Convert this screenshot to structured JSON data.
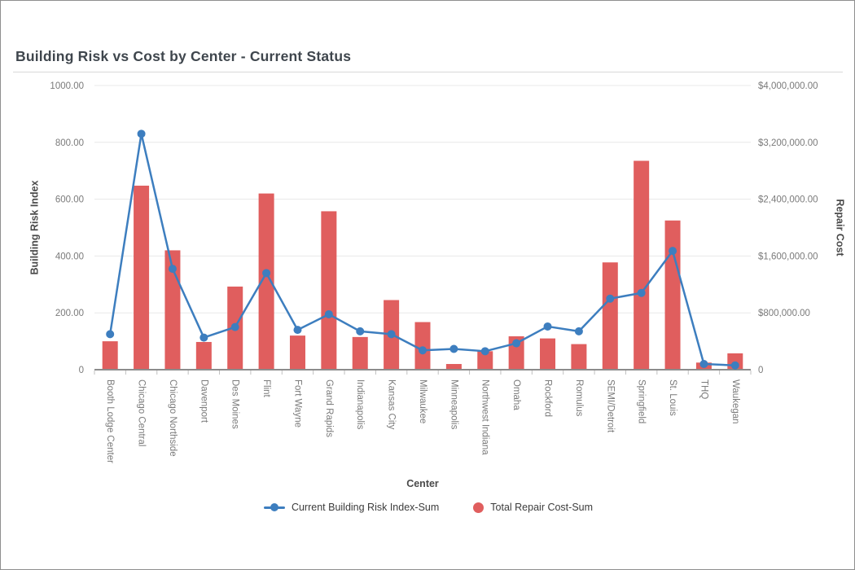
{
  "title": "Building Risk vs Cost by Center - Current Status",
  "colors": {
    "line_series": "#3d7ebf",
    "bar_series": "#e05e5e",
    "grid": "#e8e8e8",
    "axis_line": "#8c8c8c",
    "tick_mark": "#c0c0c0",
    "tick_label": "#7a7a7a",
    "axis_title": "#4a4a4a"
  },
  "chart_data": {
    "type": "combo bar+line",
    "title": "Building Risk vs Cost by Center - Current Status",
    "xlabel": "Center",
    "ylabel_left": "Building Risk Index",
    "ylabel_right": "Repair Cost",
    "ylim_left": [
      0,
      1000
    ],
    "ylim_right": [
      0,
      4000000
    ],
    "grid": true,
    "legend_position": "bottom",
    "y_left_ticks": [
      {
        "value": 1000,
        "label": "1000.00"
      },
      {
        "value": 800,
        "label": "800.00"
      },
      {
        "value": 600,
        "label": "600.00"
      },
      {
        "value": 400,
        "label": "400.00"
      },
      {
        "value": 200,
        "label": "200.00"
      },
      {
        "value": 0,
        "label": "0"
      }
    ],
    "y_right_ticks": [
      {
        "value": 4000000,
        "label": "$4,000,000.00"
      },
      {
        "value": 3200000,
        "label": "$3,200,000.00"
      },
      {
        "value": 2400000,
        "label": "$2,400,000.00"
      },
      {
        "value": 1600000,
        "label": "$1,600,000.00"
      },
      {
        "value": 800000,
        "label": "$800,000.00"
      },
      {
        "value": 0,
        "label": "0"
      }
    ],
    "categories": [
      "Booth Lodge Center",
      "Chicago Central",
      "Chicago Northside",
      "Davenport",
      "Des Moines",
      "Flint",
      "Fort Wayne",
      "Grand Rapids",
      "Indianapolis",
      "Kansas City",
      "Milwaukee",
      "Minneapolis",
      "Northwest Indiana",
      "Omaha",
      "Rockford",
      "Romulus",
      "SEMI/Detroit",
      "Springfield",
      "St. Louis",
      "THQ",
      "Waukegan"
    ],
    "series": [
      {
        "name": "Total Repair Cost-Sum",
        "type": "bar",
        "axis": "right",
        "values": [
          400000,
          2590000,
          1680000,
          390000,
          1170000,
          2480000,
          480000,
          2230000,
          460000,
          980000,
          670000,
          80000,
          260000,
          470000,
          440000,
          360000,
          1510000,
          2940000,
          2100000,
          100000,
          230000
        ]
      },
      {
        "name": "Current Building Risk Index-Sum",
        "type": "line",
        "axis": "left",
        "values": [
          125,
          830,
          355,
          113,
          150,
          340,
          140,
          195,
          135,
          125,
          68,
          73,
          65,
          93,
          152,
          135,
          250,
          270,
          418,
          20,
          15
        ]
      }
    ]
  },
  "legend": {
    "items": [
      {
        "label": "Current Building Risk Index-Sum"
      },
      {
        "label": "Total Repair Cost-Sum"
      }
    ]
  }
}
